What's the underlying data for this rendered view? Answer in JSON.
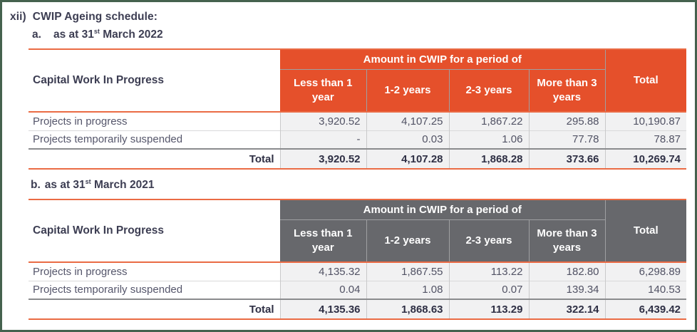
{
  "colors": {
    "accent_orange": "#E5502B",
    "orange_rule": "#EA6B44",
    "header_gray": "#67686C",
    "frame_green": "#45624E"
  },
  "heading": {
    "index": "xii)",
    "title": "CWIP Ageing schedule:"
  },
  "tables": [
    {
      "item_label": "a.",
      "subtitle_pre": "as at 31",
      "subtitle_sup": "st",
      "subtitle_post": " March 2022",
      "row_header": "Capital Work In Progress",
      "group_header": "Amount in CWIP for a period of",
      "col_headers": [
        "Less than 1 year",
        "1-2 years",
        "2-3 years",
        "More than 3 years"
      ],
      "total_header": "Total",
      "rows": [
        {
          "label": "Projects in progress",
          "values": [
            "3,920.52",
            "4,107.25",
            "1,867.22",
            "295.88",
            "10,190.87"
          ]
        },
        {
          "label": "Projects temporarily suspended",
          "values": [
            "-",
            "0.03",
            "1.06",
            "77.78",
            "78.87"
          ]
        }
      ],
      "total_row": {
        "label": "Total",
        "values": [
          "3,920.52",
          "4,107.28",
          "1,868.28",
          "373.66",
          "10,269.74"
        ]
      }
    },
    {
      "item_label": "b.",
      "subtitle_pre": "as at 31",
      "subtitle_sup": "st",
      "subtitle_post": " March 2021",
      "row_header": "Capital Work In Progress",
      "group_header": "Amount in CWIP for a period of",
      "col_headers": [
        "Less than 1 year",
        "1-2 years",
        "2-3 years",
        "More than 3 years"
      ],
      "total_header": "Total",
      "rows": [
        {
          "label": "Projects in progress",
          "values": [
            "4,135.32",
            "1,867.55",
            "113.22",
            "182.80",
            "6,298.89"
          ]
        },
        {
          "label": "Projects temporarily suspended",
          "values": [
            "0.04",
            "1.08",
            "0.07",
            "139.34",
            "140.53"
          ]
        }
      ],
      "total_row": {
        "label": "Total",
        "values": [
          "4,135.36",
          "1,868.63",
          "113.29",
          "322.14",
          "6,439.42"
        ]
      }
    }
  ]
}
